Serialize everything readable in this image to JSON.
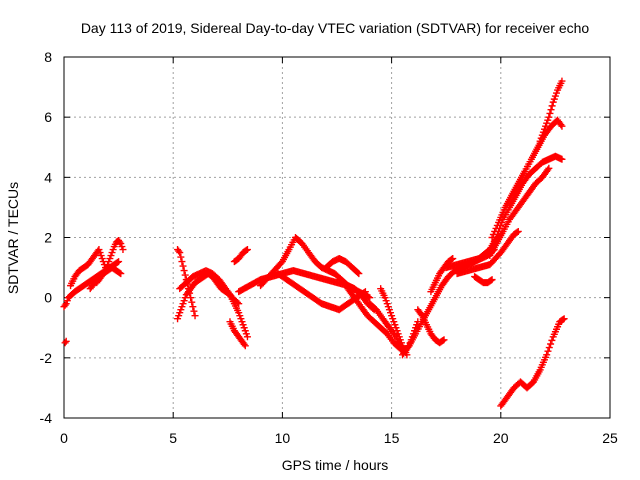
{
  "chart_data": {
    "type": "scatter",
    "title": "Day 113 of 2019, Sidereal Day-to-day VTEC variation (SDTVAR) for receiver echo",
    "xlabel": "GPS time / hours",
    "ylabel": "SDTVAR / TECUs",
    "xlim": [
      0,
      25
    ],
    "ylim": [
      -4,
      8
    ],
    "xticks": [
      "0",
      "5",
      "10",
      "15",
      "20",
      "25"
    ],
    "yticks": [
      "-4",
      "-2",
      "0",
      "2",
      "4",
      "6",
      "8"
    ],
    "grid": true,
    "marker": "+",
    "color": "#ff0000",
    "series": [
      {
        "name": "track-early-1",
        "x": [
          0.0,
          0.1,
          0.2,
          0.35,
          0.5,
          0.7,
          0.9,
          1.1,
          1.3,
          1.5,
          1.7,
          1.9,
          2.1,
          2.3,
          2.5
        ],
        "y": [
          -0.3,
          -0.2,
          0.0,
          0.1,
          0.2,
          0.3,
          0.4,
          0.5,
          0.6,
          0.7,
          0.8,
          0.9,
          1.0,
          1.1,
          1.2
        ]
      },
      {
        "name": "track-early-2",
        "x": [
          0.3,
          0.5,
          0.7,
          0.9,
          1.1,
          1.3,
          1.5,
          1.6,
          1.7,
          1.8,
          1.9
        ],
        "y": [
          0.4,
          0.7,
          0.9,
          1.0,
          1.1,
          1.3,
          1.5,
          1.6,
          1.4,
          1.2,
          1.0
        ]
      },
      {
        "name": "track-early-3",
        "x": [
          1.5,
          1.7,
          1.9,
          2.0,
          2.1,
          2.2,
          2.3,
          2.4,
          2.5,
          2.6,
          2.7
        ],
        "y": [
          0.5,
          0.7,
          0.9,
          1.1,
          1.3,
          1.5,
          1.7,
          1.85,
          1.9,
          1.8,
          1.6
        ]
      },
      {
        "name": "track-early-4",
        "x": [
          1.2,
          1.4,
          1.6,
          1.8,
          2.0,
          2.2,
          2.4,
          2.6
        ],
        "y": [
          0.3,
          0.5,
          0.6,
          0.8,
          0.9,
          1.0,
          0.9,
          0.8
        ]
      },
      {
        "name": "track-early-5",
        "x": [
          0.05,
          0.1
        ],
        "y": [
          -1.5,
          -1.45
        ]
      },
      {
        "name": "track-mid-1",
        "x": [
          5.2,
          5.3,
          5.4,
          5.5,
          5.6,
          5.8,
          6.0,
          6.2,
          6.4,
          6.6,
          6.8,
          7.0,
          7.2,
          7.4,
          7.6,
          7.8,
          8.0,
          8.2,
          8.4
        ],
        "y": [
          -0.7,
          -0.5,
          -0.3,
          -0.1,
          0.1,
          0.3,
          0.5,
          0.6,
          0.7,
          0.8,
          0.7,
          0.5,
          0.3,
          0.2,
          0.1,
          -0.2,
          -0.5,
          -0.9,
          -1.3
        ]
      },
      {
        "name": "track-mid-2",
        "x": [
          5.2,
          5.3,
          5.4,
          5.5,
          5.6,
          5.7,
          5.8,
          5.9,
          6.0
        ],
        "y": [
          1.6,
          1.5,
          1.2,
          0.9,
          0.6,
          0.3,
          0.0,
          -0.3,
          -0.6
        ]
      },
      {
        "name": "track-mid-3",
        "x": [
          5.3,
          5.6,
          5.9,
          6.2,
          6.5,
          6.8,
          7.1,
          7.4,
          7.7,
          8.0
        ],
        "y": [
          0.3,
          0.5,
          0.7,
          0.8,
          0.9,
          0.8,
          0.6,
          0.3,
          0.0,
          -0.2
        ]
      },
      {
        "name": "track-mid-4",
        "x": [
          7.6,
          7.8,
          8.0,
          8.2,
          8.3
        ],
        "y": [
          -0.8,
          -1.1,
          -1.3,
          -1.5,
          -1.6
        ]
      },
      {
        "name": "track-mid-5",
        "x": [
          7.8,
          8.0,
          8.2,
          8.4
        ],
        "y": [
          1.2,
          1.3,
          1.5,
          1.6
        ]
      },
      {
        "name": "track-mid-6",
        "x": [
          8.0,
          8.5,
          9.0,
          9.5,
          10.0,
          10.5,
          11.0,
          11.5,
          12.0,
          12.5,
          13.0,
          13.5,
          14.0
        ],
        "y": [
          0.2,
          0.4,
          0.6,
          0.7,
          0.8,
          0.9,
          0.8,
          0.7,
          0.6,
          0.5,
          0.4,
          0.2,
          0.0
        ]
      },
      {
        "name": "track-mid-7",
        "x": [
          9.0,
          9.5,
          10.0,
          10.3,
          10.6,
          10.9,
          11.2,
          11.5,
          11.8,
          12.1,
          12.4,
          12.7,
          13.0,
          13.3,
          13.6,
          13.9,
          14.2
        ],
        "y": [
          0.4,
          0.8,
          1.2,
          1.6,
          2.0,
          1.8,
          1.5,
          1.2,
          1.0,
          0.9,
          0.8,
          0.6,
          0.4,
          0.3,
          0.1,
          -0.2,
          -0.4
        ]
      },
      {
        "name": "track-mid-8",
        "x": [
          9.8,
          10.2,
          10.6,
          11.0,
          11.4,
          11.8,
          12.2,
          12.6,
          13.0,
          13.4,
          13.8
        ],
        "y": [
          0.8,
          0.6,
          0.4,
          0.2,
          0.0,
          -0.2,
          -0.3,
          -0.4,
          -0.2,
          0.0,
          0.2
        ]
      },
      {
        "name": "track-mid-9",
        "x": [
          12.0,
          12.3,
          12.6,
          12.9,
          13.2,
          13.5
        ],
        "y": [
          1.0,
          1.2,
          1.3,
          1.2,
          1.0,
          0.8
        ]
      },
      {
        "name": "track-mid-10",
        "x": [
          13.0,
          13.3,
          13.6,
          13.9,
          14.2,
          14.5,
          14.8,
          15.1,
          15.4,
          15.6,
          15.8
        ],
        "y": [
          0.3,
          0.0,
          -0.3,
          -0.6,
          -0.8,
          -1.0,
          -1.2,
          -1.5,
          -1.7,
          -1.8,
          -1.6
        ]
      },
      {
        "name": "track-mid-11",
        "x": [
          14.0,
          14.3,
          14.6,
          14.9,
          15.2,
          15.4,
          15.6,
          15.8,
          16.0,
          16.2
        ],
        "y": [
          -0.2,
          -0.4,
          -0.7,
          -1.0,
          -1.3,
          -1.6,
          -1.8,
          -1.6,
          -1.2,
          -0.8
        ]
      },
      {
        "name": "track-mid-12",
        "x": [
          14.5,
          14.7,
          14.9,
          15.1,
          15.3,
          15.5,
          15.7
        ],
        "y": [
          0.3,
          0.0,
          -0.4,
          -0.8,
          -1.2,
          -1.6,
          -1.9
        ]
      },
      {
        "name": "track-mid-13",
        "x": [
          15.5,
          15.8,
          16.1,
          16.4,
          16.7,
          17.0,
          17.3,
          17.6,
          17.9,
          18.2,
          18.5,
          18.8,
          19.1,
          19.4,
          19.7
        ],
        "y": [
          -1.9,
          -1.6,
          -1.2,
          -0.8,
          -0.4,
          0.0,
          0.4,
          0.7,
          0.9,
          1.0,
          1.1,
          1.2,
          1.3,
          1.4,
          1.6
        ]
      },
      {
        "name": "track-mid-14",
        "x": [
          16.2,
          16.4,
          16.6,
          16.8,
          17.0,
          17.2,
          17.4
        ],
        "y": [
          -0.4,
          -0.6,
          -0.9,
          -1.2,
          -1.4,
          -1.5,
          -1.4
        ]
      },
      {
        "name": "track-mid-15",
        "x": [
          16.8,
          17.0,
          17.2,
          17.4,
          17.6,
          17.8
        ],
        "y": [
          0.2,
          0.5,
          0.8,
          1.0,
          1.2,
          1.3
        ]
      },
      {
        "name": "track-late-1",
        "x": [
          17.5,
          18.0,
          18.5,
          19.0,
          19.5,
          19.8,
          20.1,
          20.4,
          20.7,
          21.0,
          21.3,
          21.6,
          21.9,
          22.2,
          22.5,
          22.8
        ],
        "y": [
          1.0,
          1.1,
          1.2,
          1.3,
          1.6,
          2.0,
          2.6,
          3.0,
          3.4,
          3.8,
          4.1,
          4.3,
          4.5,
          4.6,
          4.7,
          4.6
        ]
      },
      {
        "name": "track-late-2",
        "x": [
          19.6,
          19.9,
          20.2,
          20.5,
          20.8,
          21.1,
          21.4,
          21.7,
          22.0,
          22.3,
          22.6,
          22.8
        ],
        "y": [
          2.0,
          2.5,
          3.0,
          3.4,
          3.8,
          4.2,
          4.6,
          5.0,
          5.4,
          5.7,
          5.9,
          5.7
        ]
      },
      {
        "name": "track-late-3",
        "x": [
          21.8,
          22.0,
          22.2,
          22.4,
          22.6,
          22.8
        ],
        "y": [
          5.2,
          5.6,
          6.0,
          6.5,
          6.9,
          7.2
        ]
      },
      {
        "name": "track-late-4",
        "x": [
          19.5,
          19.8,
          20.1,
          20.4,
          20.7,
          21.0,
          21.3,
          21.6,
          21.9,
          22.2
        ],
        "y": [
          1.4,
          1.8,
          2.2,
          2.6,
          2.9,
          3.2,
          3.5,
          3.8,
          4.0,
          4.3
        ]
      },
      {
        "name": "track-late-5",
        "x": [
          18.0,
          18.5,
          19.0,
          19.5,
          20.0,
          20.3,
          20.6,
          20.8
        ],
        "y": [
          0.8,
          0.9,
          1.0,
          1.1,
          1.5,
          1.8,
          2.1,
          2.2
        ]
      },
      {
        "name": "track-late-6",
        "x": [
          18.8,
          19.0,
          19.2,
          19.4,
          19.6
        ],
        "y": [
          0.7,
          0.6,
          0.5,
          0.5,
          0.6
        ]
      },
      {
        "name": "track-late-7",
        "x": [
          20.0,
          20.3,
          20.6,
          20.9,
          21.2,
          21.5,
          21.8,
          22.1,
          22.4,
          22.7,
          22.9
        ],
        "y": [
          -3.6,
          -3.3,
          -3.0,
          -2.8,
          -3.0,
          -2.8,
          -2.4,
          -1.9,
          -1.3,
          -0.8,
          -0.7
        ]
      }
    ]
  }
}
